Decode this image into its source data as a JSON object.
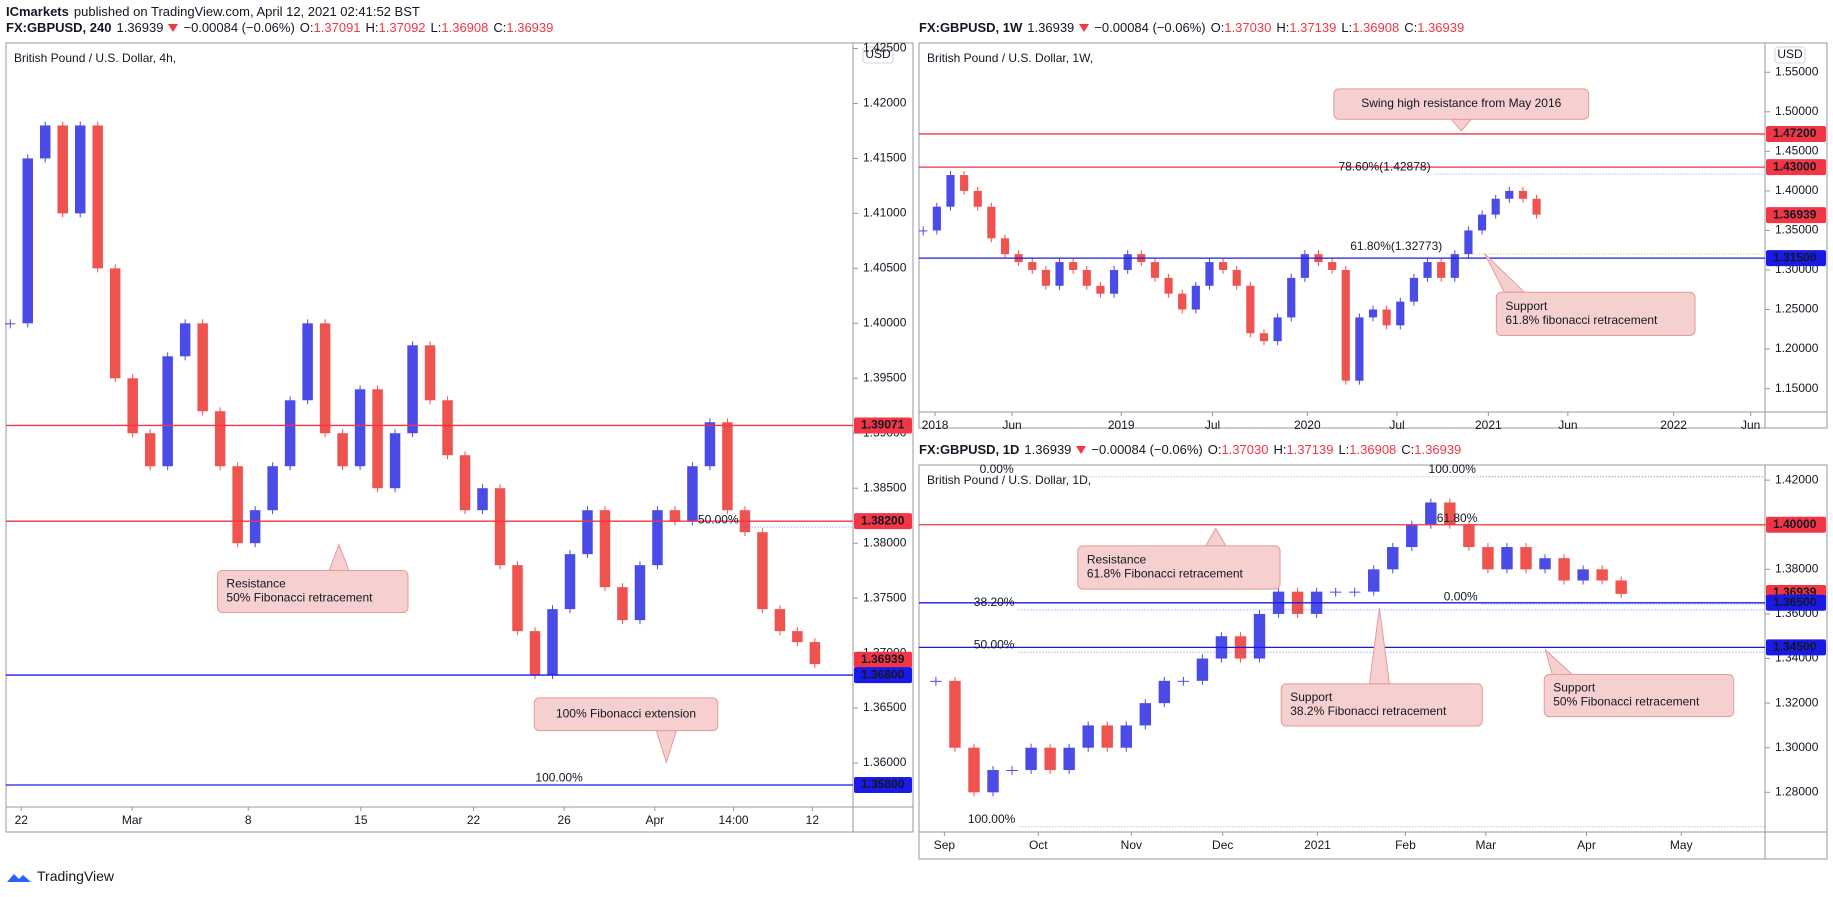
{
  "header": {
    "author": "ICmarkets",
    "published": "published on TradingView.com, April 12, 2021 02:41:52 BST"
  },
  "footer": "TradingView",
  "chart_data": [
    {
      "type": "candlestick",
      "symbol": "FX:GBPUSD, 240",
      "last": "1.36939",
      "change": "−0.00084 (−0.06%)",
      "ohlc": [
        [
          "O:",
          "1.37091"
        ],
        [
          "H:",
          "1.37092"
        ],
        [
          "L:",
          "1.36908"
        ],
        [
          "C:",
          "1.36939"
        ]
      ],
      "title": "British Pound / U.S. Dollar, 4h,",
      "currency": "USD",
      "closes": [
        1.4,
        1.415,
        1.418,
        1.41,
        1.418,
        1.405,
        1.395,
        1.39,
        1.387,
        1.397,
        1.4,
        1.392,
        1.387,
        1.38,
        1.383,
        1.387,
        1.393,
        1.4,
        1.39,
        1.387,
        1.394,
        1.385,
        1.39,
        1.398,
        1.393,
        1.388,
        1.383,
        1.385,
        1.378,
        1.372,
        1.368,
        1.374,
        1.379,
        1.383,
        1.376,
        1.373,
        1.378,
        1.383,
        1.382,
        1.387,
        1.391,
        1.383,
        1.381,
        1.374,
        1.372,
        1.371,
        1.369
      ],
      "up_color": "#4b4be8",
      "down_color": "#ef5350",
      "ylim": [
        1.356,
        1.4255
      ],
      "yticks": [
        {
          "value": 1.36,
          "label": "1.36000"
        },
        {
          "value": 1.365,
          "label": "1.36500"
        },
        {
          "value": 1.37,
          "label": "1.37000"
        },
        {
          "value": 1.375,
          "label": "1.37500"
        },
        {
          "value": 1.38,
          "label": "1.38000"
        },
        {
          "value": 1.385,
          "label": "1.38500"
        },
        {
          "value": 1.39,
          "label": "1.39000"
        },
        {
          "value": 1.395,
          "label": "1.39500"
        },
        {
          "value": 1.4,
          "label": "1.40000"
        },
        {
          "value": 1.405,
          "label": "1.40500"
        },
        {
          "value": 1.41,
          "label": "1.41000"
        },
        {
          "value": 1.415,
          "label": "1.41500"
        },
        {
          "value": 1.42,
          "label": "1.42000"
        },
        {
          "value": 1.425,
          "label": "1.42500"
        }
      ],
      "xticks": [
        "22",
        "Mar",
        "8",
        "15",
        "22",
        "26",
        "Apr",
        "14:00",
        "12"
      ],
      "levels": [
        {
          "value": 1.39071,
          "label": "1.39071",
          "color": "#f23645",
          "line": true
        },
        {
          "value": 1.382,
          "label": "1.38200",
          "color": "#f23645",
          "line": true
        },
        {
          "value": 1.36939,
          "label": "1.36939",
          "color": "#f23645",
          "line": false
        },
        {
          "value": 1.368,
          "label": "1.36800",
          "color": "#1a1ae6",
          "line": true
        },
        {
          "value": 1.358,
          "label": "1.35800",
          "color": "#1a1ae6",
          "line": true
        }
      ],
      "fib_labels": [
        {
          "value": 1.382,
          "label": "50.00%",
          "color": "#2962ff"
        },
        {
          "value": 1.3585,
          "label": "100.00%",
          "color": "#2962ff"
        }
      ],
      "annotations": [
        [
          "Resistance",
          "50% Fibonacci retracement"
        ],
        [
          "100% Fibonacci extension"
        ]
      ]
    },
    {
      "type": "candlestick",
      "symbol": "FX:GBPUSD, 1W",
      "last": "1.36939",
      "change": "−0.00084 (−0.06%)",
      "ohlc": [
        [
          "O:",
          "1.37030"
        ],
        [
          "H:",
          "1.37139"
        ],
        [
          "L:",
          "1.36908"
        ],
        [
          "C:",
          "1.36939"
        ]
      ],
      "title": "British Pound / U.S. Dollar, 1W,",
      "currency": "USD",
      "closes": [
        1.35,
        1.38,
        1.42,
        1.4,
        1.38,
        1.34,
        1.32,
        1.31,
        1.3,
        1.28,
        1.31,
        1.3,
        1.28,
        1.27,
        1.3,
        1.32,
        1.31,
        1.29,
        1.27,
        1.25,
        1.28,
        1.31,
        1.3,
        1.28,
        1.22,
        1.21,
        1.24,
        1.29,
        1.32,
        1.31,
        1.3,
        1.16,
        1.24,
        1.25,
        1.23,
        1.26,
        1.29,
        1.31,
        1.29,
        1.32,
        1.35,
        1.37,
        1.39,
        1.4,
        1.39,
        1.37
      ],
      "up_color": "#4b4be8",
      "down_color": "#ef5350",
      "ylim": [
        1.1204,
        1.587
      ],
      "yticks": [
        {
          "value": 1.15,
          "label": "1.15000"
        },
        {
          "value": 1.2,
          "label": "1.20000"
        },
        {
          "value": 1.25,
          "label": "1.25000"
        },
        {
          "value": 1.3,
          "label": "1.30000"
        },
        {
          "value": 1.35,
          "label": "1.35000"
        },
        {
          "value": 1.4,
          "label": "1.40000"
        },
        {
          "value": 1.45,
          "label": "1.45000"
        },
        {
          "value": 1.5,
          "label": "1.50000"
        },
        {
          "value": 1.55,
          "label": "1.55000"
        }
      ],
      "xticks": [
        "2018",
        "Jun",
        "2019",
        "Jul",
        "2020",
        "Jul",
        "2021",
        "Jun",
        "2022",
        "Jun"
      ],
      "levels": [
        {
          "value": 1.472,
          "label": "1.47200",
          "color": "#f23645",
          "line": true
        },
        {
          "value": 1.43,
          "label": "1.43000",
          "color": "#f23645",
          "line": true
        },
        {
          "value": 1.36939,
          "label": "1.36939",
          "color": "#f23645",
          "line": false
        },
        {
          "value": 1.315,
          "label": "1.31500",
          "color": "#1a1ae6",
          "line": true
        }
      ],
      "fib_labels": [
        {
          "value": 1.42878,
          "label": "78.60%(1.42878)",
          "color": "#2196f3"
        },
        {
          "value": 1.32773,
          "label": "61.80%(1.32773)",
          "color": "#c9a000"
        }
      ],
      "annotations": [
        [
          "Swing high resistance from May 2016"
        ],
        [
          "Support",
          "61.8% fibonacci retracement"
        ]
      ]
    },
    {
      "type": "candlestick",
      "symbol": "FX:GBPUSD, 1D",
      "last": "1.36939",
      "change": "−0.00084 (−0.06%)",
      "ohlc": [
        [
          "O:",
          "1.37030"
        ],
        [
          "H:",
          "1.37139"
        ],
        [
          "L:",
          "1.36908"
        ],
        [
          "C:",
          "1.36939"
        ]
      ],
      "title": "British Pound / U.S. Dollar, 1D,",
      "closes": [
        1.33,
        1.3,
        1.28,
        1.29,
        1.29,
        1.3,
        1.29,
        1.3,
        1.31,
        1.3,
        1.31,
        1.32,
        1.33,
        1.33,
        1.34,
        1.35,
        1.34,
        1.36,
        1.37,
        1.36,
        1.37,
        1.37,
        1.37,
        1.38,
        1.39,
        1.4,
        1.41,
        1.4,
        1.39,
        1.38,
        1.39,
        1.38,
        1.385,
        1.375,
        1.38,
        1.375,
        1.369
      ],
      "up_color": "#4b4be8",
      "down_color": "#ef5350",
      "ylim": [
        1.2622,
        1.4268
      ],
      "yticks": [
        {
          "value": 1.28,
          "label": "1.28000"
        },
        {
          "value": 1.3,
          "label": "1.30000"
        },
        {
          "value": 1.32,
          "label": "1.32000"
        },
        {
          "value": 1.34,
          "label": "1.34000"
        },
        {
          "value": 1.36,
          "label": "1.36000"
        },
        {
          "value": 1.38,
          "label": "1.38000"
        },
        {
          "value": 1.4,
          "label": "1.40000"
        },
        {
          "value": 1.42,
          "label": "1.42000"
        }
      ],
      "xticks": [
        "Sep",
        "Oct",
        "Nov",
        "Dec",
        "2021",
        "Feb",
        "Mar",
        "Apr",
        "May"
      ],
      "levels": [
        {
          "value": 1.4,
          "label": "1.40000",
          "color": "#f23645",
          "line": true
        },
        {
          "value": 1.36939,
          "label": "1.36939",
          "color": "#f23645",
          "line": false
        },
        {
          "value": 1.365,
          "label": "1.36500",
          "color": "#1a1ae6",
          "line": true
        },
        {
          "value": 1.345,
          "label": "1.34500",
          "color": "#1a1ae6",
          "line": true
        }
      ],
      "fib_labels": [
        {
          "value": 1.4242,
          "label": "0.00%",
          "color": "#888888"
        },
        {
          "value": 1.4242,
          "label": "100.00%",
          "color": "#888888"
        },
        {
          "value": 1.4022,
          "label": "61.80%",
          "color": "#c9a000"
        },
        {
          "value": 1.367,
          "label": "0.00%",
          "color": "#888888"
        },
        {
          "value": 1.3645,
          "label": "38.20%",
          "color": "#2962ff"
        },
        {
          "value": 1.3455,
          "label": "50.00%",
          "color": "#2962ff"
        },
        {
          "value": 1.2673,
          "label": "100.00%",
          "color": "#888888"
        }
      ],
      "annotations": [
        [
          "Resistance",
          "61.8% Fibonacci retracement"
        ],
        [
          "Support",
          "38.2% Fibonacci retracement"
        ],
        [
          "Support",
          "50% Fibonacci retracement"
        ]
      ]
    }
  ]
}
